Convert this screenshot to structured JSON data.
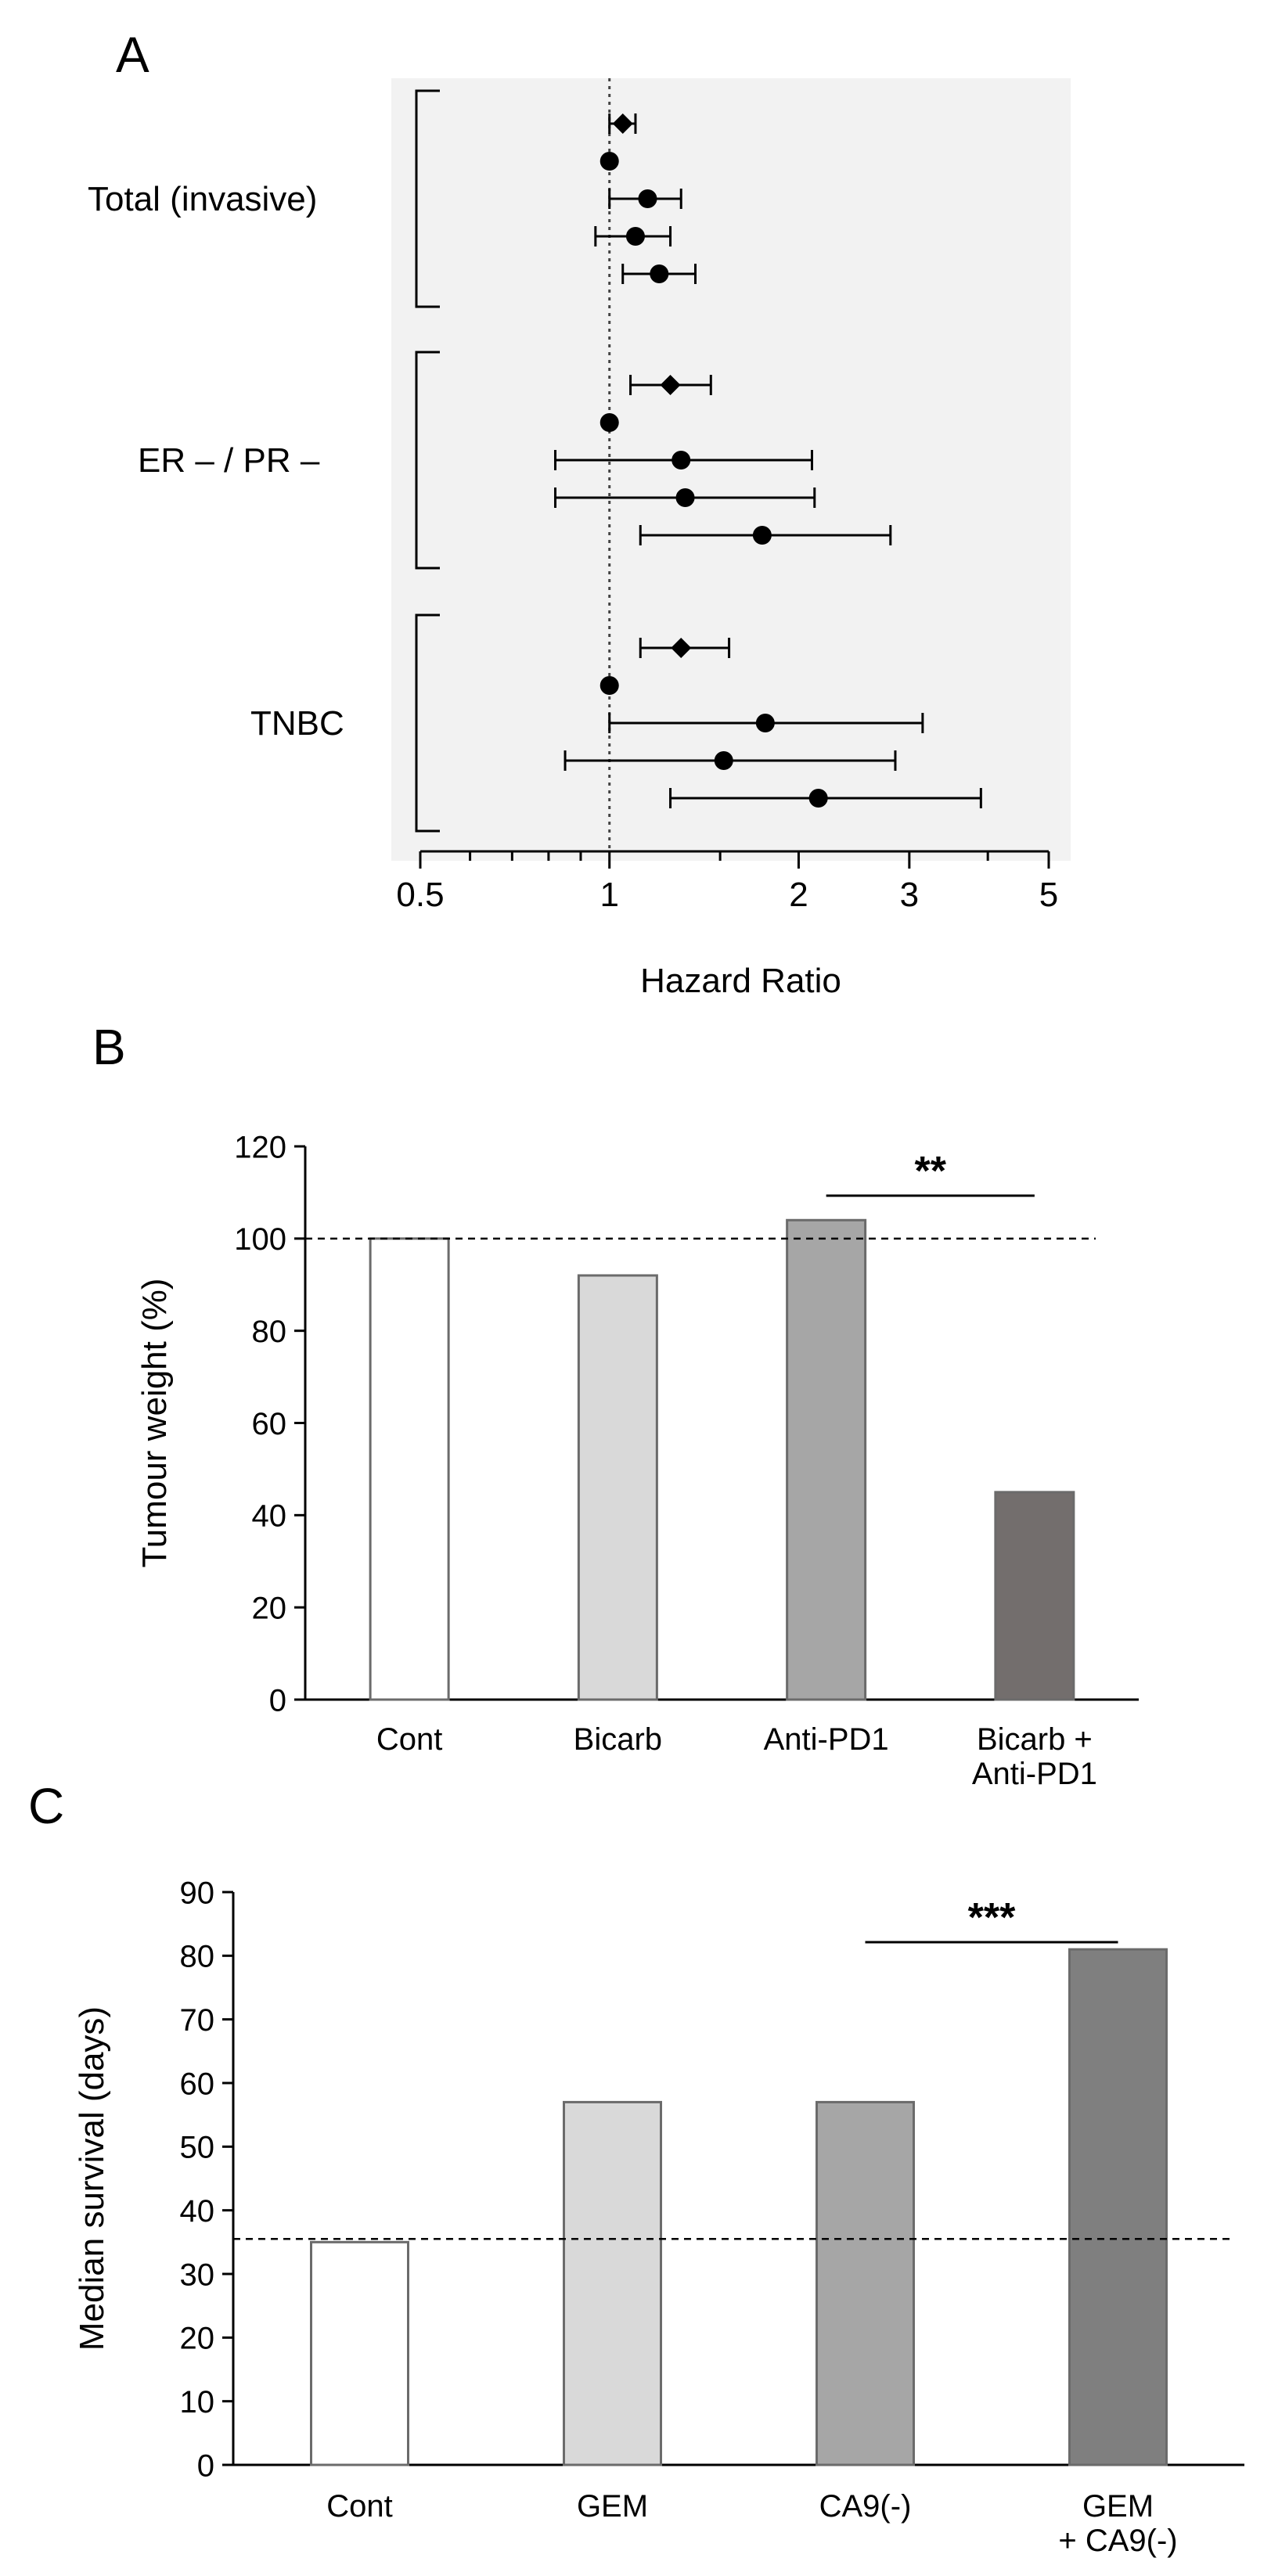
{
  "chart_data": [
    {
      "type": "forest",
      "panel_label": "A",
      "xlabel": "Hazard Ratio",
      "xscale": "log",
      "xlim": [
        0.5,
        5
      ],
      "xticks": [
        0.5,
        1,
        2,
        3,
        5
      ],
      "xtick_labels": [
        "0.5",
        "1",
        "2",
        "3",
        "5"
      ],
      "reference_line": 1,
      "groups": [
        {
          "label": "Total (invasive)",
          "rows": [
            {
              "marker": "diamond",
              "estimate": 1.05,
              "low": 1.0,
              "high": 1.1
            },
            {
              "marker": "circle",
              "estimate": 1.0,
              "low": null,
              "high": null
            },
            {
              "marker": "circle",
              "estimate": 1.15,
              "low": 1.0,
              "high": 1.3
            },
            {
              "marker": "circle",
              "estimate": 1.1,
              "low": 0.95,
              "high": 1.25
            },
            {
              "marker": "circle",
              "estimate": 1.2,
              "low": 1.05,
              "high": 1.37
            }
          ]
        },
        {
          "label": "ER – / PR –",
          "rows": [
            {
              "marker": "diamond",
              "estimate": 1.25,
              "low": 1.08,
              "high": 1.45
            },
            {
              "marker": "circle",
              "estimate": 1.0,
              "low": null,
              "high": null
            },
            {
              "marker": "circle",
              "estimate": 1.3,
              "low": 0.82,
              "high": 2.1
            },
            {
              "marker": "circle",
              "estimate": 1.32,
              "low": 0.82,
              "high": 2.12
            },
            {
              "marker": "circle",
              "estimate": 1.75,
              "low": 1.12,
              "high": 2.8
            }
          ]
        },
        {
          "label": "TNBC",
          "rows": [
            {
              "marker": "diamond",
              "estimate": 1.3,
              "low": 1.12,
              "high": 1.55
            },
            {
              "marker": "circle",
              "estimate": 1.0,
              "low": null,
              "high": null
            },
            {
              "marker": "circle",
              "estimate": 1.77,
              "low": 1.0,
              "high": 3.15
            },
            {
              "marker": "circle",
              "estimate": 1.52,
              "low": 0.85,
              "high": 2.85
            },
            {
              "marker": "circle",
              "estimate": 2.15,
              "low": 1.25,
              "high": 3.9
            }
          ]
        }
      ]
    },
    {
      "type": "bar",
      "panel_label": "B",
      "title": "",
      "xlabel": "",
      "ylabel": "Tumour weight (%)",
      "ylim": [
        0,
        120
      ],
      "yticks": [
        0,
        20,
        40,
        60,
        80,
        100,
        120
      ],
      "categories": [
        [
          "Cont"
        ],
        [
          "Bicarb"
        ],
        [
          "Anti-PD1"
        ],
        [
          "Bicarb +",
          "Anti-PD1"
        ]
      ],
      "values": [
        100,
        92,
        104,
        45
      ],
      "colors": [
        "#ffffff",
        "#d9d9d9",
        "#a6a6a6",
        "#736e6d"
      ],
      "reference_line": 100,
      "significance": {
        "label": "**",
        "from_index": 2,
        "to_index": 3
      }
    },
    {
      "type": "bar",
      "panel_label": "C",
      "title": "",
      "xlabel": "",
      "ylabel": "Median survival (days)",
      "ylim": [
        0,
        90
      ],
      "yticks": [
        0,
        10,
        20,
        30,
        40,
        50,
        60,
        70,
        80,
        90
      ],
      "categories": [
        [
          "Cont"
        ],
        [
          "GEM"
        ],
        [
          "CA9(-)"
        ],
        [
          "GEM",
          "+ CA9(-)"
        ]
      ],
      "values": [
        35,
        57,
        57,
        81
      ],
      "colors": [
        "#ffffff",
        "#d9d9d9",
        "#a6a6a6",
        "#7f7f7f"
      ],
      "reference_line": 35.5,
      "significance": {
        "label": "***",
        "from_index": 2,
        "to_index": 3
      }
    }
  ]
}
